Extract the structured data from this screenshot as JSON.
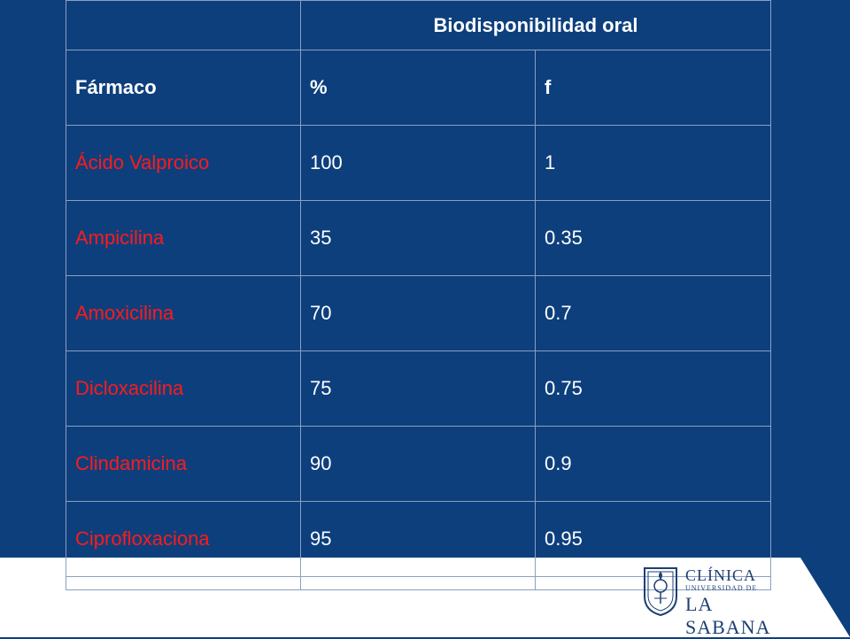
{
  "table": {
    "header_title": "Biodisponibilidad oral",
    "col_drug": "Fármaco",
    "col_percent": "%",
    "col_f": "f",
    "rows": [
      {
        "drug": "Ácido Valproico",
        "percent": "100",
        "f": "1"
      },
      {
        "drug": "Ampicilina",
        "percent": "35",
        "f": "0.35"
      },
      {
        "drug": "Amoxicilina",
        "percent": "70",
        "f": "0.7"
      },
      {
        "drug": "Dicloxacilina",
        "percent": "75",
        "f": "0.75"
      },
      {
        "drug": "Clindamicina",
        "percent": "90",
        "f": "0.9"
      },
      {
        "drug": "Ciprofloxaciona",
        "percent": "95",
        "f": "0.95"
      }
    ]
  },
  "logo": {
    "line1": "CLÍNICA",
    "line2": "UNIVERSIDAD DE",
    "line3": "LA SABANA"
  },
  "colors": {
    "background": "#0d3f7d",
    "drug_text": "#ff1a1a",
    "logo": "#1d3f73"
  }
}
